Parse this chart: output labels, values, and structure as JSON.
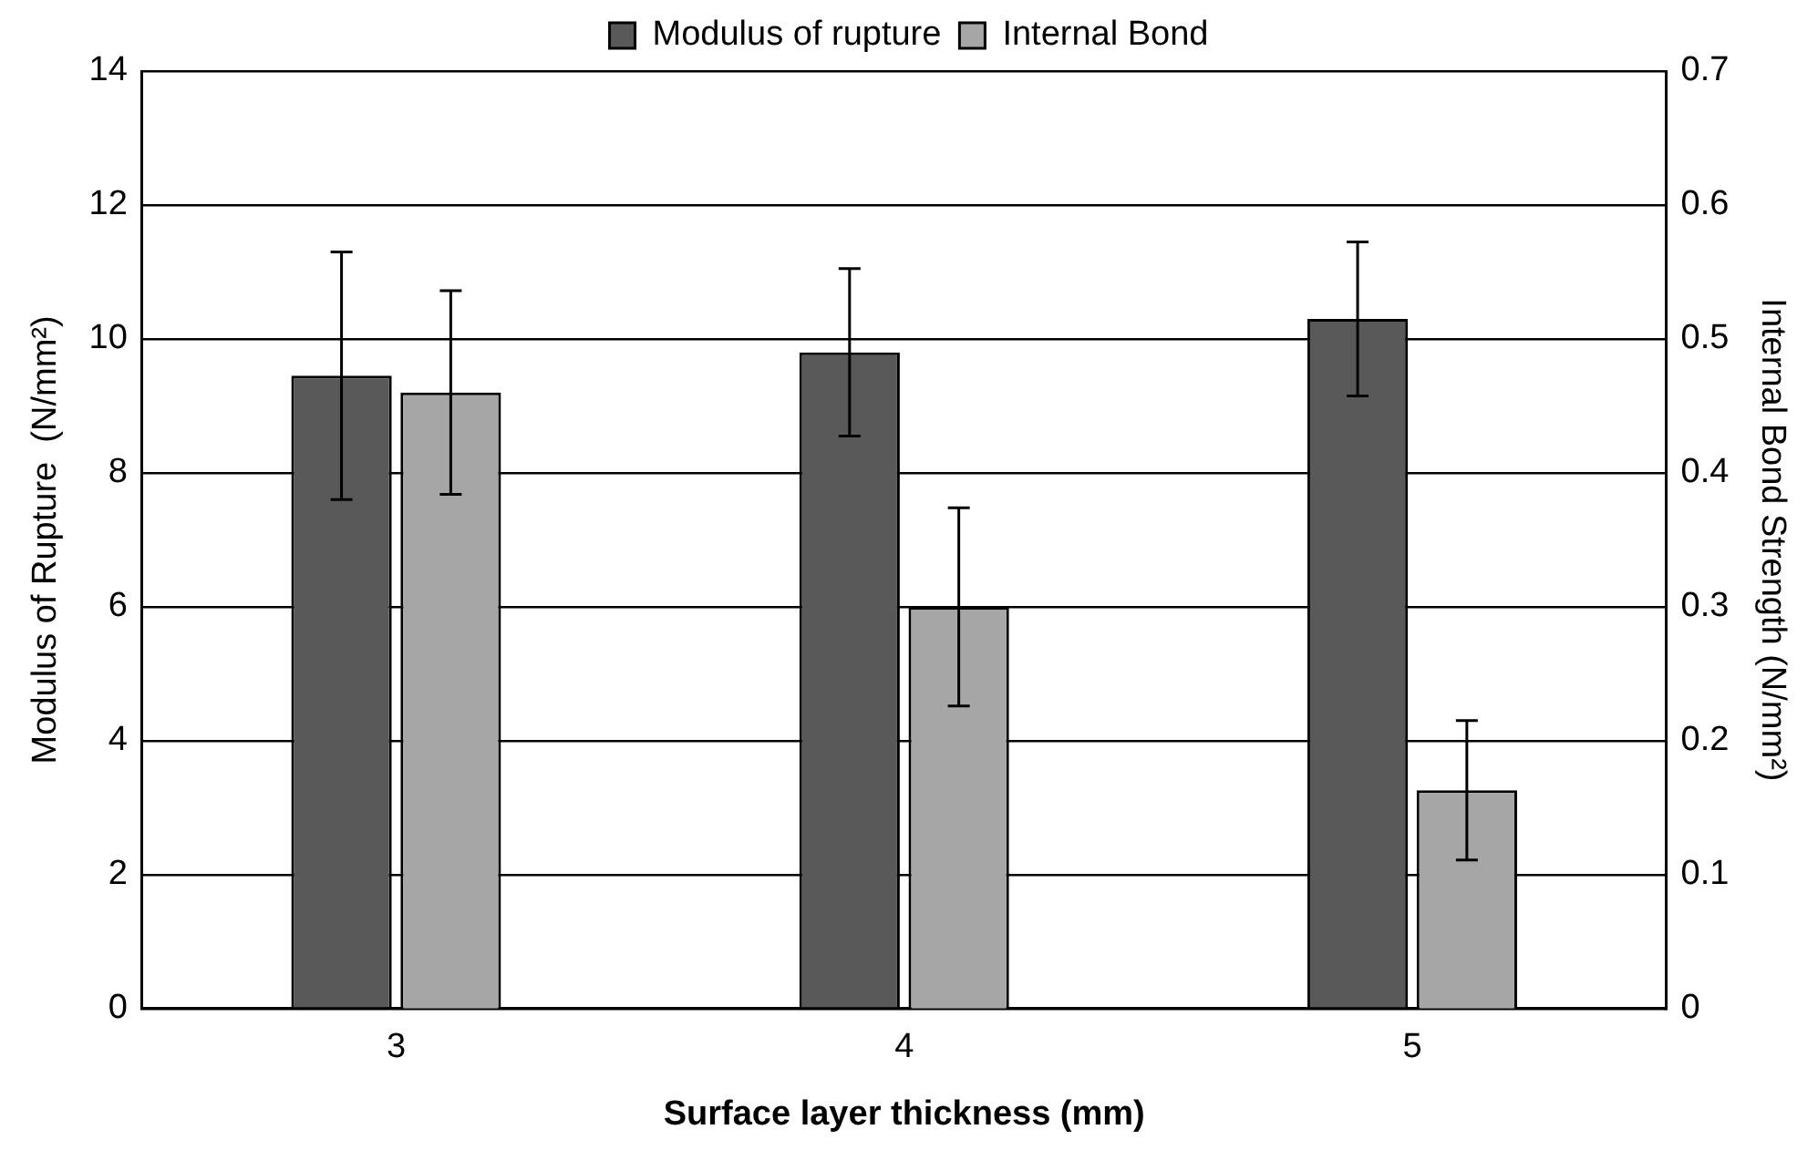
{
  "chart_data": {
    "type": "bar",
    "xlabel": "Surface layer thickness (mm)",
    "ylabel": "Modulus of Rupture  (N/mm²)",
    "y2label": "Internal Bond Strength (N/mm²)",
    "categories": [
      "3",
      "4",
      "5"
    ],
    "series": [
      {
        "name": "Modulus of rupture",
        "color": "#595959",
        "values": [
          9.45,
          9.8,
          10.3
        ],
        "errors": [
          1.85,
          1.25,
          1.15
        ]
      },
      {
        "name": "Internal Bond",
        "color": "#a6a6a6",
        "axis": "y2",
        "values": [
          0.46,
          0.3,
          0.163
        ],
        "errors": [
          0.076,
          0.074,
          0.052
        ]
      }
    ],
    "ylim": [
      0,
      14
    ],
    "yticks": [
      0,
      2,
      4,
      6,
      8,
      10,
      12,
      14
    ],
    "y2lim": [
      0,
      0.7
    ],
    "y2ticks": [
      0,
      0.1,
      0.2,
      0.3,
      0.4,
      0.5,
      0.6,
      0.7
    ],
    "grid": "y",
    "legend": "top"
  }
}
